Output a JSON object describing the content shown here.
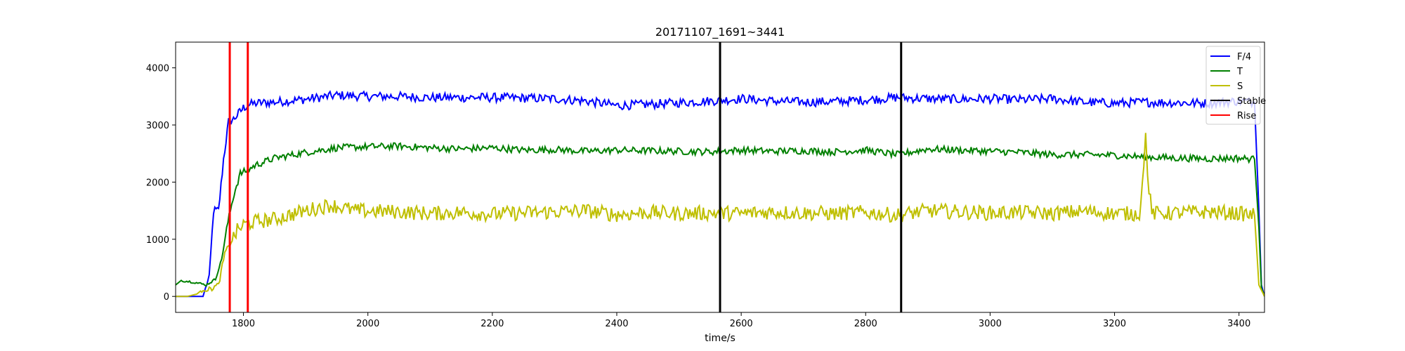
{
  "chart_data": {
    "type": "line",
    "title": "20171107_1691~3441",
    "xlabel": "time/s",
    "ylabel": "",
    "xlim": [
      1691,
      3441
    ],
    "ylim": [
      -280,
      4450
    ],
    "x_ticks": [
      1800,
      2000,
      2200,
      2400,
      2600,
      2800,
      3000,
      3200,
      3400
    ],
    "y_ticks": [
      0,
      1000,
      2000,
      3000,
      4000
    ],
    "legend_position": "top-right",
    "colors": {
      "F/4": "#0000ff",
      "T": "#008000",
      "S": "#bfbf00",
      "Stable": "#000000",
      "Rise": "#ff0000"
    },
    "series": [
      {
        "name": "F/4",
        "color": "#0000ff",
        "x": [
          1691,
          1700,
          1720,
          1735,
          1745,
          1752,
          1760,
          1768,
          1776,
          1784,
          1792,
          1800,
          1808,
          1820,
          1850,
          1900,
          1950,
          2000,
          2050,
          2100,
          2150,
          2200,
          2250,
          2300,
          2350,
          2400,
          2450,
          2500,
          2550,
          2600,
          2650,
          2700,
          2750,
          2800,
          2850,
          2900,
          2950,
          3000,
          3050,
          3100,
          3150,
          3200,
          3250,
          3300,
          3350,
          3400,
          3425,
          3432,
          3436,
          3441
        ],
        "y": [
          0,
          0,
          0,
          0,
          350,
          1500,
          1500,
          2400,
          3050,
          3100,
          3200,
          3300,
          3350,
          3380,
          3400,
          3450,
          3520,
          3500,
          3500,
          3480,
          3480,
          3480,
          3470,
          3460,
          3420,
          3340,
          3360,
          3390,
          3420,
          3460,
          3420,
          3400,
          3410,
          3440,
          3480,
          3460,
          3450,
          3460,
          3440,
          3460,
          3400,
          3380,
          3400,
          3390,
          3380,
          3420,
          3400,
          1500,
          200,
          0
        ]
      },
      {
        "name": "T",
        "color": "#008000",
        "x": [
          1691,
          1700,
          1720,
          1740,
          1755,
          1765,
          1775,
          1785,
          1795,
          1805,
          1820,
          1850,
          1900,
          1950,
          2000,
          2050,
          2100,
          2150,
          2200,
          2250,
          2300,
          2350,
          2400,
          2450,
          2500,
          2550,
          2600,
          2650,
          2700,
          2750,
          2800,
          2850,
          2900,
          2950,
          3000,
          3050,
          3100,
          3150,
          3200,
          3250,
          3300,
          3350,
          3400,
          3425,
          3432,
          3436,
          3441
        ],
        "y": [
          200,
          280,
          250,
          200,
          300,
          650,
          1300,
          1800,
          2150,
          2200,
          2300,
          2420,
          2520,
          2600,
          2620,
          2630,
          2600,
          2580,
          2600,
          2560,
          2570,
          2540,
          2560,
          2550,
          2540,
          2530,
          2560,
          2540,
          2550,
          2530,
          2560,
          2480,
          2580,
          2560,
          2540,
          2520,
          2480,
          2480,
          2470,
          2440,
          2420,
          2410,
          2420,
          2400,
          1200,
          150,
          0
        ]
      },
      {
        "name": "S",
        "color": "#bfbf00",
        "x": [
          1691,
          1710,
          1725,
          1735,
          1745,
          1760,
          1770,
          1780,
          1790,
          1800,
          1815,
          1850,
          1900,
          1940,
          1980,
          2050,
          2100,
          2150,
          2200,
          2250,
          2300,
          2350,
          2400,
          2450,
          2500,
          2550,
          2600,
          2650,
          2700,
          2750,
          2800,
          2850,
          2900,
          2950,
          3000,
          3050,
          3100,
          3150,
          3200,
          3240,
          3247,
          3250,
          3253,
          3260,
          3300,
          3350,
          3400,
          3425,
          3432,
          3441
        ],
        "y": [
          0,
          0,
          40,
          130,
          120,
          200,
          750,
          950,
          1150,
          1250,
          1300,
          1350,
          1500,
          1600,
          1500,
          1480,
          1450,
          1470,
          1440,
          1460,
          1480,
          1500,
          1430,
          1470,
          1450,
          1460,
          1450,
          1480,
          1460,
          1450,
          1470,
          1420,
          1500,
          1480,
          1460,
          1470,
          1450,
          1490,
          1450,
          1450,
          2200,
          2980,
          2100,
          1450,
          1460,
          1480,
          1450,
          1420,
          200,
          0
        ]
      }
    ],
    "vertical_lines": [
      {
        "name": "Stable",
        "color": "#000000",
        "x": [
          2566,
          2857
        ]
      },
      {
        "name": "Rise",
        "color": "#ff0000",
        "x": [
          1778,
          1807
        ]
      }
    ]
  }
}
